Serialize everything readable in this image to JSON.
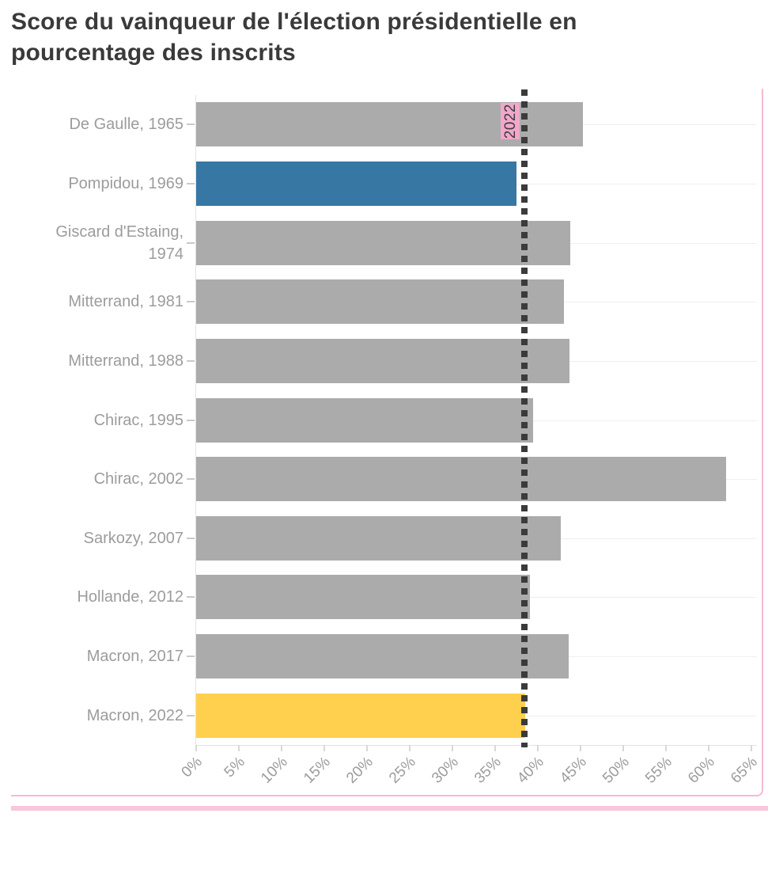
{
  "title": {
    "full": "Score du vainqueur de l'élection présidentielle en pourcentage des inscrits",
    "line1": "Score du vainqueur de l'élection présidentielle en",
    "line2": "pourcentage des inscrits"
  },
  "chart_data": {
    "type": "bar",
    "orientation": "horizontal",
    "title": "Score du vainqueur de l'élection présidentielle en pourcentage des inscrits",
    "categories": [
      "De Gaulle, 1965",
      "Pompidou, 1969",
      "Giscard d'Estaing, 1974",
      "Mitterrand, 1981",
      "Mitterrand, 1988",
      "Chirac, 1995",
      "Chirac, 2002",
      "Sarkozy, 2007",
      "Hollande, 2012",
      "Macron, 2017",
      "Macron, 2022"
    ],
    "values": [
      45.3,
      37.5,
      43.8,
      43.1,
      43.7,
      39.4,
      62.0,
      42.7,
      39.1,
      43.6,
      38.5
    ],
    "unit": "%",
    "xlim": [
      0,
      65
    ],
    "x_tick_step": 5,
    "x_tick_labels": [
      "0%",
      "5%",
      "10%",
      "15%",
      "20%",
      "25%",
      "30%",
      "35%",
      "40%",
      "45%",
      "50%",
      "55%",
      "60%",
      "65%"
    ],
    "grid": "horizontal lines at each row center",
    "legend": "none",
    "reference_line": {
      "value": 38.5,
      "label": "2022"
    },
    "highlight_indices": {
      "blue": 1,
      "yellow": 10
    },
    "colors": {
      "bar_default": "#ABABAB",
      "bar_blue": "#3777A3",
      "bar_yellow": "#FFD04D",
      "reference_line": "#3B3B3B",
      "reference_label_bg": "#F2A7CB",
      "reference_label_text": "#3D3D3D",
      "title_text": "#3A3A3A",
      "axis_label": "#9C9C9C",
      "gridline": "#EFEFEF",
      "axis_line": "#E3E3E3",
      "tick_mark": "#D8D8D8",
      "y_tick_dash": "#C9C9C9",
      "pink_border": "#F8B9D6",
      "pink_band": "#F9C6DC"
    }
  }
}
